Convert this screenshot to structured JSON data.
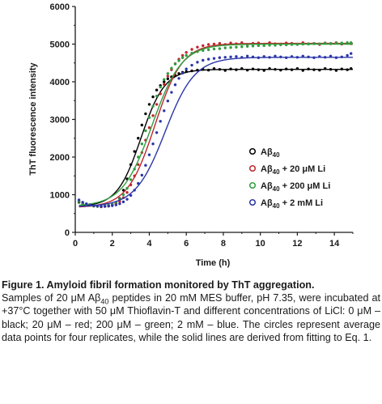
{
  "chart_data": {
    "type": "scatter",
    "xlabel": "Time (h)",
    "ylabel": "ThT fluorescence intensity",
    "xlim": [
      0,
      15
    ],
    "ylim": [
      0,
      6000
    ],
    "x_ticks": [
      0,
      2,
      4,
      6,
      8,
      10,
      12,
      14
    ],
    "y_ticks": [
      0,
      1000,
      2000,
      3000,
      4000,
      5000,
      6000
    ],
    "grid": false,
    "legend_position": "center-right",
    "series": [
      {
        "name": "Aβ40",
        "legend_main": "Aβ",
        "legend_sub": "40",
        "legend_suffix": "",
        "color": "#000000",
        "fit": {
          "y0": 680,
          "ymax": 4330,
          "t_half": 3.55,
          "k": 1.55,
          "x_start": 0.2
        },
        "points": [
          [
            0.2,
            800
          ],
          [
            0.4,
            760
          ],
          [
            0.6,
            740
          ],
          [
            0.8,
            720
          ],
          [
            1.0,
            700
          ],
          [
            1.2,
            690
          ],
          [
            1.4,
            680
          ],
          [
            1.6,
            690
          ],
          [
            1.8,
            700
          ],
          [
            2.0,
            730
          ],
          [
            2.2,
            790
          ],
          [
            2.4,
            900
          ],
          [
            2.6,
            1120
          ],
          [
            2.8,
            1420
          ],
          [
            3.0,
            1800
          ],
          [
            3.2,
            2150
          ],
          [
            3.4,
            2500
          ],
          [
            3.6,
            2850
          ],
          [
            3.8,
            3150
          ],
          [
            4.0,
            3400
          ],
          [
            4.2,
            3600
          ],
          [
            4.4,
            3780
          ],
          [
            4.6,
            3900
          ],
          [
            4.8,
            4000
          ],
          [
            5.0,
            4080
          ],
          [
            5.2,
            4130
          ],
          [
            5.4,
            4170
          ],
          [
            5.6,
            4220
          ],
          [
            5.8,
            4250
          ],
          [
            6.0,
            4270
          ],
          [
            6.3,
            4290
          ],
          [
            6.6,
            4310
          ],
          [
            6.9,
            4330
          ],
          [
            7.2,
            4310
          ],
          [
            7.5,
            4350
          ],
          [
            7.8,
            4330
          ],
          [
            8.1,
            4300
          ],
          [
            8.4,
            4340
          ],
          [
            8.7,
            4320
          ],
          [
            9.0,
            4350
          ],
          [
            9.3,
            4310
          ],
          [
            9.6,
            4340
          ],
          [
            9.9,
            4320
          ],
          [
            10.2,
            4300
          ],
          [
            10.5,
            4350
          ],
          [
            10.8,
            4330
          ],
          [
            11.1,
            4310
          ],
          [
            11.4,
            4340
          ],
          [
            11.7,
            4320
          ],
          [
            12.0,
            4350
          ],
          [
            12.3,
            4300
          ],
          [
            12.6,
            4340
          ],
          [
            12.9,
            4320
          ],
          [
            13.2,
            4310
          ],
          [
            13.5,
            4350
          ],
          [
            13.8,
            4330
          ],
          [
            14.1,
            4300
          ],
          [
            14.4,
            4340
          ],
          [
            14.7,
            4320
          ],
          [
            14.9,
            4350
          ]
        ]
      },
      {
        "name": "Aβ40 + 20 μM Li",
        "legend_main": "Aβ",
        "legend_sub": "40",
        "legend_suffix": " + 20 μM Li",
        "color": "#c0262d",
        "fit": {
          "y0": 660,
          "ymax": 5020,
          "t_half": 4.3,
          "k": 1.35,
          "x_start": 0.2
        },
        "points": [
          [
            0.2,
            830
          ],
          [
            0.4,
            780
          ],
          [
            0.6,
            750
          ],
          [
            0.8,
            720
          ],
          [
            1.0,
            700
          ],
          [
            1.2,
            690
          ],
          [
            1.4,
            680
          ],
          [
            1.6,
            690
          ],
          [
            1.8,
            700
          ],
          [
            2.0,
            720
          ],
          [
            2.2,
            760
          ],
          [
            2.4,
            820
          ],
          [
            2.6,
            920
          ],
          [
            2.8,
            1060
          ],
          [
            3.0,
            1260
          ],
          [
            3.2,
            1500
          ],
          [
            3.4,
            1800
          ],
          [
            3.6,
            2120
          ],
          [
            3.8,
            2450
          ],
          [
            4.0,
            2780
          ],
          [
            4.2,
            3100
          ],
          [
            4.4,
            3400
          ],
          [
            4.6,
            3680
          ],
          [
            4.8,
            3930
          ],
          [
            5.0,
            4150
          ],
          [
            5.2,
            4320
          ],
          [
            5.4,
            4480
          ],
          [
            5.6,
            4600
          ],
          [
            5.8,
            4700
          ],
          [
            6.0,
            4780
          ],
          [
            6.3,
            4860
          ],
          [
            6.6,
            4920
          ],
          [
            6.9,
            4960
          ],
          [
            7.2,
            4990
          ],
          [
            7.5,
            5000
          ],
          [
            7.8,
            5020
          ],
          [
            8.1,
            4990
          ],
          [
            8.4,
            5030
          ],
          [
            8.7,
            5010
          ],
          [
            9.0,
            5040
          ],
          [
            9.3,
            4990
          ],
          [
            9.6,
            5020
          ],
          [
            9.9,
            5030
          ],
          [
            10.2,
            5000
          ],
          [
            10.5,
            5040
          ],
          [
            10.8,
            5010
          ],
          [
            11.1,
            5000
          ],
          [
            11.4,
            5030
          ],
          [
            11.7,
            5020
          ],
          [
            12.0,
            5000
          ],
          [
            12.3,
            5040
          ],
          [
            12.6,
            5010
          ],
          [
            12.9,
            5020
          ],
          [
            13.2,
            4990
          ],
          [
            13.5,
            5030
          ],
          [
            13.8,
            5010
          ],
          [
            14.1,
            5040
          ],
          [
            14.4,
            5000
          ],
          [
            14.7,
            5020
          ],
          [
            14.9,
            5010
          ]
        ]
      },
      {
        "name": "Aβ40 + 200 μM Li",
        "legend_main": "Aβ",
        "legend_sub": "40",
        "legend_suffix": " + 200 μM Li",
        "color": "#2f9e3f",
        "fit": {
          "y0": 690,
          "ymax": 5000,
          "t_half": 4.15,
          "k": 1.25,
          "x_start": 0.2
        },
        "points": [
          [
            0.2,
            820
          ],
          [
            0.4,
            770
          ],
          [
            0.6,
            740
          ],
          [
            0.8,
            720
          ],
          [
            1.0,
            700
          ],
          [
            1.2,
            690
          ],
          [
            1.4,
            690
          ],
          [
            1.6,
            700
          ],
          [
            1.8,
            720
          ],
          [
            2.0,
            750
          ],
          [
            2.2,
            800
          ],
          [
            2.4,
            880
          ],
          [
            2.6,
            1000
          ],
          [
            2.8,
            1170
          ],
          [
            3.0,
            1400
          ],
          [
            3.2,
            1680
          ],
          [
            3.4,
            2000
          ],
          [
            3.6,
            2350
          ],
          [
            3.8,
            2700
          ],
          [
            4.0,
            3050
          ],
          [
            4.2,
            3350
          ],
          [
            4.4,
            3620
          ],
          [
            4.6,
            3860
          ],
          [
            4.8,
            4060
          ],
          [
            5.0,
            4220
          ],
          [
            5.2,
            4360
          ],
          [
            5.4,
            4470
          ],
          [
            5.6,
            4560
          ],
          [
            5.8,
            4640
          ],
          [
            6.0,
            4700
          ],
          [
            6.3,
            4760
          ],
          [
            6.6,
            4800
          ],
          [
            6.9,
            4830
          ],
          [
            7.2,
            4850
          ],
          [
            7.5,
            4870
          ],
          [
            7.8,
            4880
          ],
          [
            8.1,
            4900
          ],
          [
            8.4,
            4910
          ],
          [
            8.7,
            4920
          ],
          [
            9.0,
            4930
          ],
          [
            9.3,
            4940
          ],
          [
            9.6,
            4950
          ],
          [
            9.9,
            4960
          ],
          [
            10.2,
            4960
          ],
          [
            10.5,
            4970
          ],
          [
            10.8,
            4970
          ],
          [
            11.1,
            4980
          ],
          [
            11.4,
            4980
          ],
          [
            11.7,
            4990
          ],
          [
            12.0,
            4990
          ],
          [
            12.3,
            5000
          ],
          [
            12.6,
            5000
          ],
          [
            12.9,
            5010
          ],
          [
            13.2,
            5010
          ],
          [
            13.5,
            5020
          ],
          [
            13.8,
            5020
          ],
          [
            14.1,
            5030
          ],
          [
            14.4,
            5030
          ],
          [
            14.7,
            5040
          ],
          [
            14.9,
            5040
          ]
        ]
      },
      {
        "name": "Aβ40 + 2 mM Li",
        "legend_main": "Aβ",
        "legend_sub": "40",
        "legend_suffix": " + 2 mM Li",
        "color": "#2b35a8",
        "fit": {
          "y0": 680,
          "ymax": 4650,
          "t_half": 4.85,
          "k": 1.25,
          "x_start": 0.2
        },
        "points": [
          [
            0.2,
            860
          ],
          [
            0.4,
            800
          ],
          [
            0.6,
            760
          ],
          [
            0.8,
            730
          ],
          [
            1.0,
            710
          ],
          [
            1.2,
            700
          ],
          [
            1.4,
            690
          ],
          [
            1.6,
            690
          ],
          [
            1.8,
            700
          ],
          [
            2.0,
            710
          ],
          [
            2.2,
            730
          ],
          [
            2.4,
            760
          ],
          [
            2.6,
            810
          ],
          [
            2.8,
            880
          ],
          [
            3.0,
            980
          ],
          [
            3.2,
            1120
          ],
          [
            3.4,
            1300
          ],
          [
            3.6,
            1520
          ],
          [
            3.8,
            1780
          ],
          [
            4.0,
            2060
          ],
          [
            4.2,
            2350
          ],
          [
            4.4,
            2650
          ],
          [
            4.6,
            2950
          ],
          [
            4.8,
            3230
          ],
          [
            5.0,
            3490
          ],
          [
            5.2,
            3720
          ],
          [
            5.4,
            3920
          ],
          [
            5.6,
            4090
          ],
          [
            5.8,
            4230
          ],
          [
            6.0,
            4340
          ],
          [
            6.3,
            4440
          ],
          [
            6.6,
            4520
          ],
          [
            6.9,
            4570
          ],
          [
            7.2,
            4600
          ],
          [
            7.5,
            4620
          ],
          [
            7.8,
            4640
          ],
          [
            8.1,
            4650
          ],
          [
            8.4,
            4660
          ],
          [
            8.7,
            4670
          ],
          [
            9.0,
            4650
          ],
          [
            9.3,
            4680
          ],
          [
            9.6,
            4660
          ],
          [
            9.9,
            4640
          ],
          [
            10.2,
            4670
          ],
          [
            10.5,
            4650
          ],
          [
            10.8,
            4680
          ],
          [
            11.1,
            4660
          ],
          [
            11.4,
            4640
          ],
          [
            11.7,
            4670
          ],
          [
            12.0,
            4650
          ],
          [
            12.3,
            4680
          ],
          [
            12.6,
            4660
          ],
          [
            12.9,
            4640
          ],
          [
            13.2,
            4670
          ],
          [
            13.5,
            4650
          ],
          [
            13.8,
            4680
          ],
          [
            14.1,
            4640
          ],
          [
            14.4,
            4660
          ],
          [
            14.7,
            4700
          ],
          [
            14.9,
            4750
          ]
        ]
      }
    ]
  },
  "caption": {
    "title": "Figure 1. Amyloid fibril formation monitored by ThT aggregation.",
    "body_parts": [
      {
        "t": "Samples of 20 μM Aβ"
      },
      {
        "t": "40",
        "sub": true
      },
      {
        "t": " peptides in 20 mM MES buffer, pH 7.35, were incubated at +37°C together with 50 μM Thioflavin-T and different concentrations of LiCl: 0 μM – black; 20 μM – red; 200 μM – green; 2 mM – blue. The circles represent average data points for four replicates, while the solid lines are derived from fitting to Eq. 1."
      }
    ]
  }
}
